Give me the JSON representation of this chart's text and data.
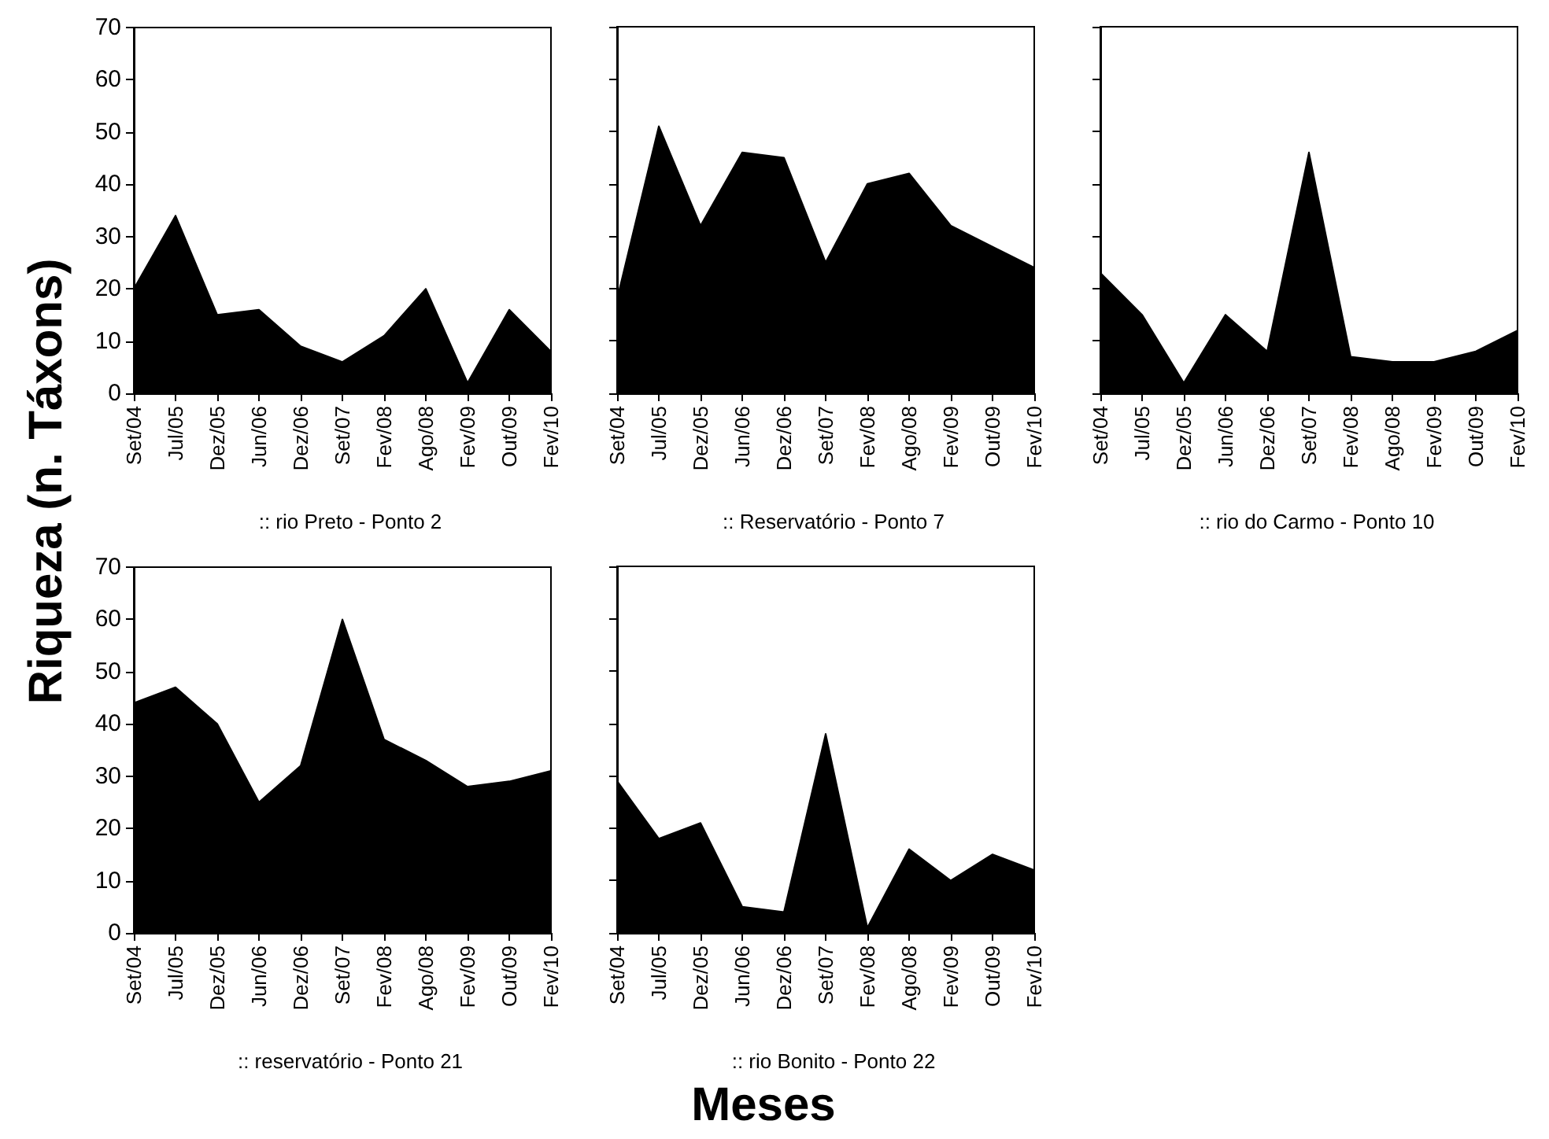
{
  "chart_data": [
    {
      "type": "area",
      "title": ":: rio Preto - Ponto 2",
      "ylabel": "Riqueza (n. Táxons)",
      "categories": [
        "Set/04",
        "Jul/05",
        "Dez/05",
        "Jun/06",
        "Dez/06",
        "Set/07",
        "Fev/08",
        "Ago/08",
        "Fev/09",
        "Out/09",
        "Fev/10"
      ],
      "series": [
        {
          "color": "#000000",
          "values": [
            20,
            34,
            15,
            16,
            9,
            6,
            11,
            20,
            2,
            16,
            8
          ]
        }
      ],
      "ylim": [
        0,
        70
      ],
      "yticks": [
        0,
        10,
        20,
        30,
        40,
        50,
        60,
        70
      ]
    },
    {
      "type": "area",
      "title": ":: Reservatório - Ponto 7",
      "categories": [
        "Set/04",
        "Jul/05",
        "Dez/05",
        "Jun/06",
        "Dez/06",
        "Set/07",
        "Fev/08",
        "Ago/08",
        "Fev/09",
        "Out/09",
        "Fev/10"
      ],
      "series": [
        {
          "color": "#000000",
          "values": [
            18,
            51,
            32,
            46,
            45,
            25,
            40,
            42,
            32,
            28,
            24
          ]
        }
      ],
      "ylim": [
        0,
        70
      ],
      "yticks": [
        0,
        10,
        20,
        30,
        40,
        50,
        60,
        70
      ],
      "tick_labels": "x"
    },
    {
      "type": "area",
      "title": ":: rio do Carmo - Ponto 10",
      "categories": [
        "Set/04",
        "Jul/05",
        "Dez/05",
        "Jun/06",
        "Dez/06",
        "Set/07",
        "Fev/08",
        "Ago/08",
        "Fev/09",
        "Out/09",
        "Fev/10"
      ],
      "series": [
        {
          "color": "#000000",
          "values": [
            23,
            15,
            2,
            15,
            8,
            46,
            7,
            6,
            6,
            8,
            12
          ]
        }
      ],
      "ylim": [
        0,
        70
      ],
      "yticks": [
        0,
        10,
        20,
        30,
        40,
        50,
        60,
        70
      ],
      "tick_labels": "x"
    },
    {
      "type": "area",
      "title": ":: reservatório - Ponto 21",
      "categories": [
        "Set/04",
        "Jul/05",
        "Dez/05",
        "Jun/06",
        "Dez/06",
        "Set/07",
        "Fev/08",
        "Ago/08",
        "Fev/09",
        "Out/09",
        "Fev/10"
      ],
      "series": [
        {
          "color": "#000000",
          "values": [
            44,
            47,
            40,
            25,
            32,
            60,
            37,
            33,
            28,
            29,
            31
          ]
        }
      ],
      "ylim": [
        0,
        70
      ],
      "yticks": [
        0,
        10,
        20,
        30,
        40,
        50,
        60,
        70
      ]
    },
    {
      "type": "area",
      "title": ":: rio Bonito - Ponto 22",
      "xlabel": "Meses",
      "categories": [
        "Set/04",
        "Jul/05",
        "Dez/05",
        "Jun/06",
        "Dez/06",
        "Set/07",
        "Fev/08",
        "Ago/08",
        "Fev/09",
        "Out/09",
        "Fev/10"
      ],
      "series": [
        {
          "color": "#000000",
          "values": [
            29,
            18,
            21,
            5,
            4,
            38,
            1,
            16,
            10,
            15,
            12
          ]
        }
      ],
      "ylim": [
        0,
        70
      ],
      "yticks": [
        0,
        10,
        20,
        30,
        40,
        50,
        60,
        70
      ],
      "tick_labels": "x"
    }
  ]
}
